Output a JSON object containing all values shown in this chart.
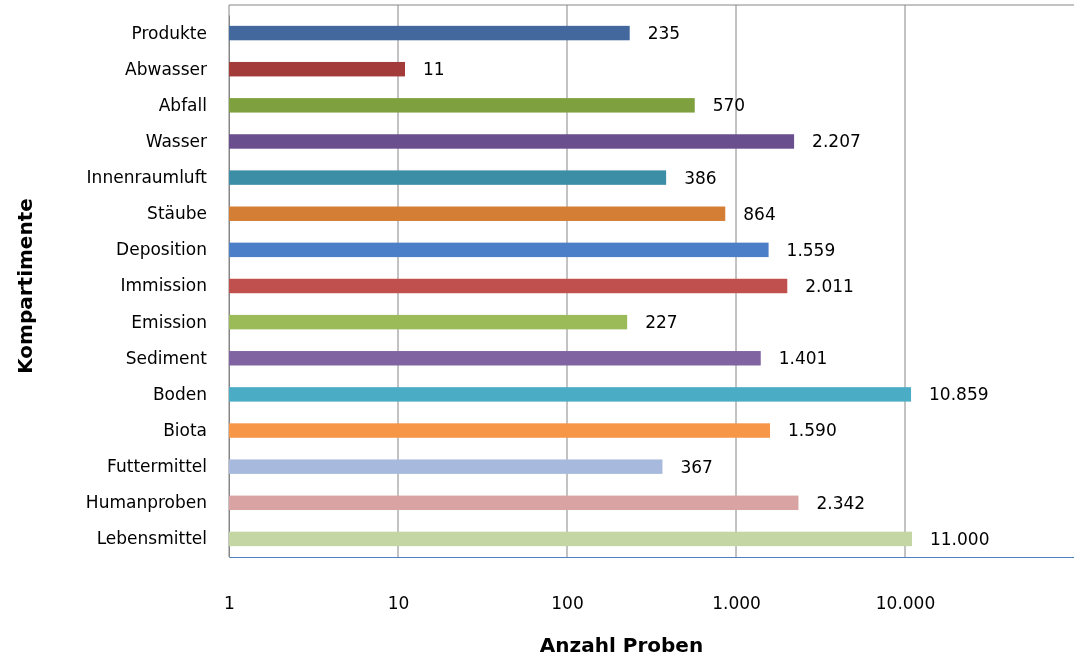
{
  "chart_data": {
    "type": "bar",
    "orientation": "horizontal",
    "xlabel": "Anzahl Proben",
    "ylabel": "Kompartimente",
    "categories": [
      "Produkte",
      "Abwasser",
      "Abfall",
      "Wasser",
      "Innenraumluft",
      "Stäube",
      "Deposition",
      "Immission",
      "Emission",
      "Sediment",
      "Boden",
      "Biota",
      "Futtermittel",
      "Humanproben",
      "Lebensmittel"
    ],
    "values": [
      235,
      11,
      570,
      2207,
      386,
      864,
      1559,
      2011,
      227,
      1401,
      10859,
      1590,
      367,
      2342,
      11000
    ],
    "value_labels": [
      "235",
      "11",
      "570",
      "2.207",
      "386",
      "864",
      "1.559",
      "2.011",
      "227",
      "1.401",
      "10.859",
      "1.590",
      "367",
      "2.342",
      "11.000"
    ],
    "colors": [
      "#43689e",
      "#a23b3a",
      "#7ea03f",
      "#6a4f8f",
      "#3b8ea5",
      "#d47d35",
      "#4b7fc8",
      "#c0504d",
      "#9bbb59",
      "#8064a2",
      "#4bacc6",
      "#f79646",
      "#a7b9dc",
      "#d9a3a3",
      "#c3d6a3"
    ],
    "log": "x",
    "xlim": [
      1,
      100000
    ],
    "xticks": [
      1,
      10,
      100,
      {
        "value": 1000,
        "label": "1.000"
      },
      {
        "value": 10000,
        "label": "10.000"
      }
    ],
    "grid": "x"
  }
}
